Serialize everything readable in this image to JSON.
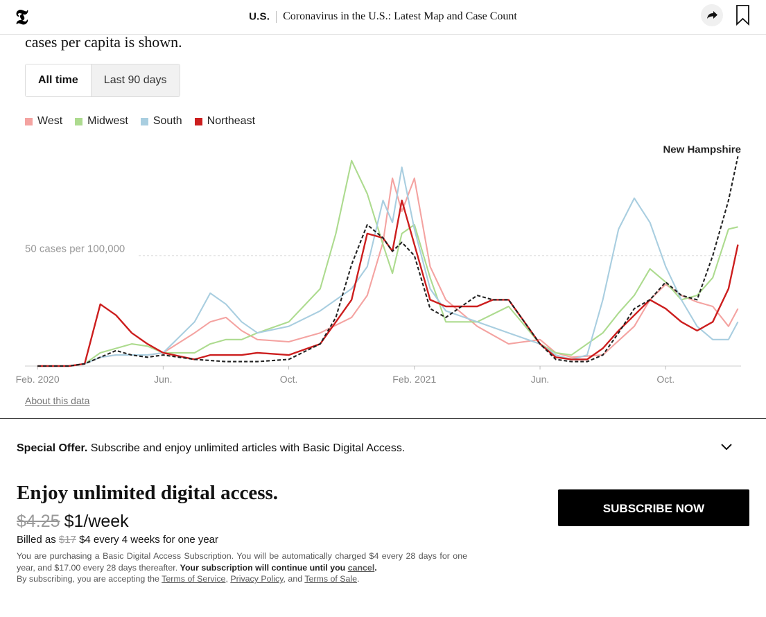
{
  "header": {
    "section": "U.S.",
    "title": "Coronavirus in the U.S.: Latest Map and Case Count"
  },
  "intro_text": "cases per capita is shown.",
  "toggle": {
    "all_time": "All time",
    "last_90": "Last 90 days",
    "selected": "All time"
  },
  "colors": {
    "West": "#f4a3a1",
    "Midwest": "#addb8f",
    "South": "#a9cee0",
    "Northeast": "#cc1e1e",
    "highlight": "#222222"
  },
  "about_link": "About this data",
  "chart_data": {
    "type": "line",
    "ylabel": "",
    "reference_line": {
      "value": 50,
      "label": "50 cases per 100,000"
    },
    "x_ticks": [
      "Feb. 2020",
      "Jun.",
      "Oct.",
      "Feb. 2021",
      "Jun.",
      "Oct."
    ],
    "x_tick_months": [
      0,
      4,
      8,
      12,
      16,
      20
    ],
    "x_range_months": [
      -0.4,
      22.4
    ],
    "y_range": [
      0,
      97
    ],
    "legend": [
      "West",
      "Midwest",
      "South",
      "Northeast"
    ],
    "highlight_label": "New Hampshire",
    "series": [
      {
        "name": "West",
        "x": [
          0,
          1,
          1.5,
          2,
          2.5,
          3,
          3.5,
          4,
          5,
          5.5,
          6,
          6.5,
          7,
          8,
          9,
          10,
          10.5,
          11,
          11.3,
          11.6,
          12,
          12.5,
          13,
          14,
          15,
          16,
          16.5,
          17,
          18,
          19,
          19.5,
          20,
          20.5,
          21,
          21.5,
          22,
          22.3
        ],
        "y": [
          0,
          0,
          1,
          4,
          5,
          5,
          5,
          6,
          15,
          20,
          22,
          16,
          12,
          11,
          15,
          22,
          32,
          56,
          85,
          70,
          85,
          45,
          30,
          18,
          10,
          12,
          6,
          4,
          5,
          18,
          30,
          37,
          32,
          29,
          27,
          18,
          26
        ]
      },
      {
        "name": "Midwest",
        "x": [
          0,
          1,
          1.5,
          2,
          2.5,
          3,
          3.5,
          4,
          5,
          5.5,
          6,
          6.5,
          7,
          8,
          9,
          9.5,
          10,
          10.5,
          11,
          11.3,
          11.6,
          12,
          12.5,
          13,
          14,
          15,
          16,
          16.5,
          17,
          18,
          18.5,
          19,
          19.5,
          20,
          20.5,
          21,
          21.5,
          22,
          22.3
        ],
        "y": [
          0,
          0,
          1,
          6,
          8,
          10,
          9,
          6,
          6,
          10,
          12,
          12,
          15,
          20,
          35,
          60,
          93,
          78,
          55,
          42,
          60,
          64,
          40,
          20,
          20,
          27,
          10,
          6,
          5,
          15,
          24,
          32,
          44,
          38,
          30,
          32,
          40,
          62,
          63
        ]
      },
      {
        "name": "South",
        "x": [
          0,
          1,
          1.5,
          2,
          2.5,
          3,
          3.5,
          4,
          5,
          5.5,
          6,
          6.5,
          7,
          8,
          9,
          10,
          10.5,
          11,
          11.3,
          11.6,
          12,
          12.5,
          13,
          14,
          15,
          16,
          16.5,
          17,
          17.5,
          18,
          18.5,
          19,
          19.5,
          20,
          20.5,
          21,
          21.5,
          22,
          22.3
        ],
        "y": [
          0,
          0,
          1,
          4,
          5,
          5,
          5,
          6,
          20,
          33,
          28,
          20,
          15,
          18,
          25,
          35,
          45,
          75,
          65,
          90,
          62,
          35,
          25,
          20,
          15,
          10,
          5,
          3,
          5,
          30,
          62,
          76,
          65,
          45,
          30,
          18,
          12,
          12,
          20
        ]
      },
      {
        "name": "Northeast",
        "x": [
          0,
          1,
          1.5,
          2,
          2.5,
          3,
          3.5,
          4,
          5,
          5.5,
          6,
          6.5,
          7,
          8,
          9,
          10,
          10.5,
          11,
          11.3,
          11.6,
          12,
          12.5,
          13,
          14,
          14.5,
          15,
          16,
          16.5,
          17,
          17.5,
          18,
          18.5,
          19,
          19.5,
          20,
          20.5,
          21,
          21.5,
          22,
          22.3
        ],
        "y": [
          0,
          0,
          1,
          28,
          23,
          15,
          10,
          6,
          3,
          5,
          5,
          5,
          6,
          5,
          10,
          30,
          60,
          58,
          52,
          75,
          55,
          30,
          27,
          27,
          30,
          30,
          10,
          4,
          3,
          3,
          8,
          16,
          23,
          30,
          26,
          20,
          16,
          20,
          35,
          55
        ]
      },
      {
        "name": "New Hampshire",
        "x": [
          0,
          1,
          1.5,
          2,
          2.5,
          3,
          3.5,
          4,
          5,
          6,
          7,
          8,
          9,
          9.5,
          10,
          10.5,
          11,
          11.3,
          11.6,
          12,
          12.5,
          13,
          14,
          14.5,
          15,
          16,
          16.5,
          17,
          17.5,
          18,
          18.5,
          19,
          19.5,
          20,
          20.5,
          21,
          21.5,
          22,
          22.3
        ],
        "y": [
          0,
          0,
          1,
          4,
          7,
          5,
          4,
          5,
          3,
          2,
          2,
          3,
          10,
          22,
          46,
          64,
          58,
          52,
          56,
          50,
          26,
          22,
          32,
          30,
          30,
          10,
          3,
          2,
          2,
          5,
          15,
          26,
          30,
          38,
          32,
          30,
          50,
          75,
          95
        ]
      }
    ]
  },
  "offer": {
    "bold": "Special Offer.",
    "text": "Subscribe and enjoy unlimited articles with Basic Digital Access."
  },
  "promo": {
    "title": "Enjoy unlimited digital access.",
    "old_price": "$4.25",
    "new_price": "$1/week",
    "billed_prefix": "Billed as",
    "billed_old": "$17",
    "billed_rest": "$4 every 4 weeks for one year",
    "fine_1": "You are purchasing a Basic Digital Access Subscription. You will be automatically charged $4 every 28 days for one year, and $17.00 every 28 days thereafter.",
    "fine_bold": "Your subscription will continue until you",
    "fine_cancel": "cancel",
    "fine_2": "By subscribing, you are accepting the",
    "tos": "Terms of Service",
    "privacy": "Privacy Policy",
    "and": "and",
    "sale": "Terms of Sale",
    "button": "SUBSCRIBE NOW"
  }
}
